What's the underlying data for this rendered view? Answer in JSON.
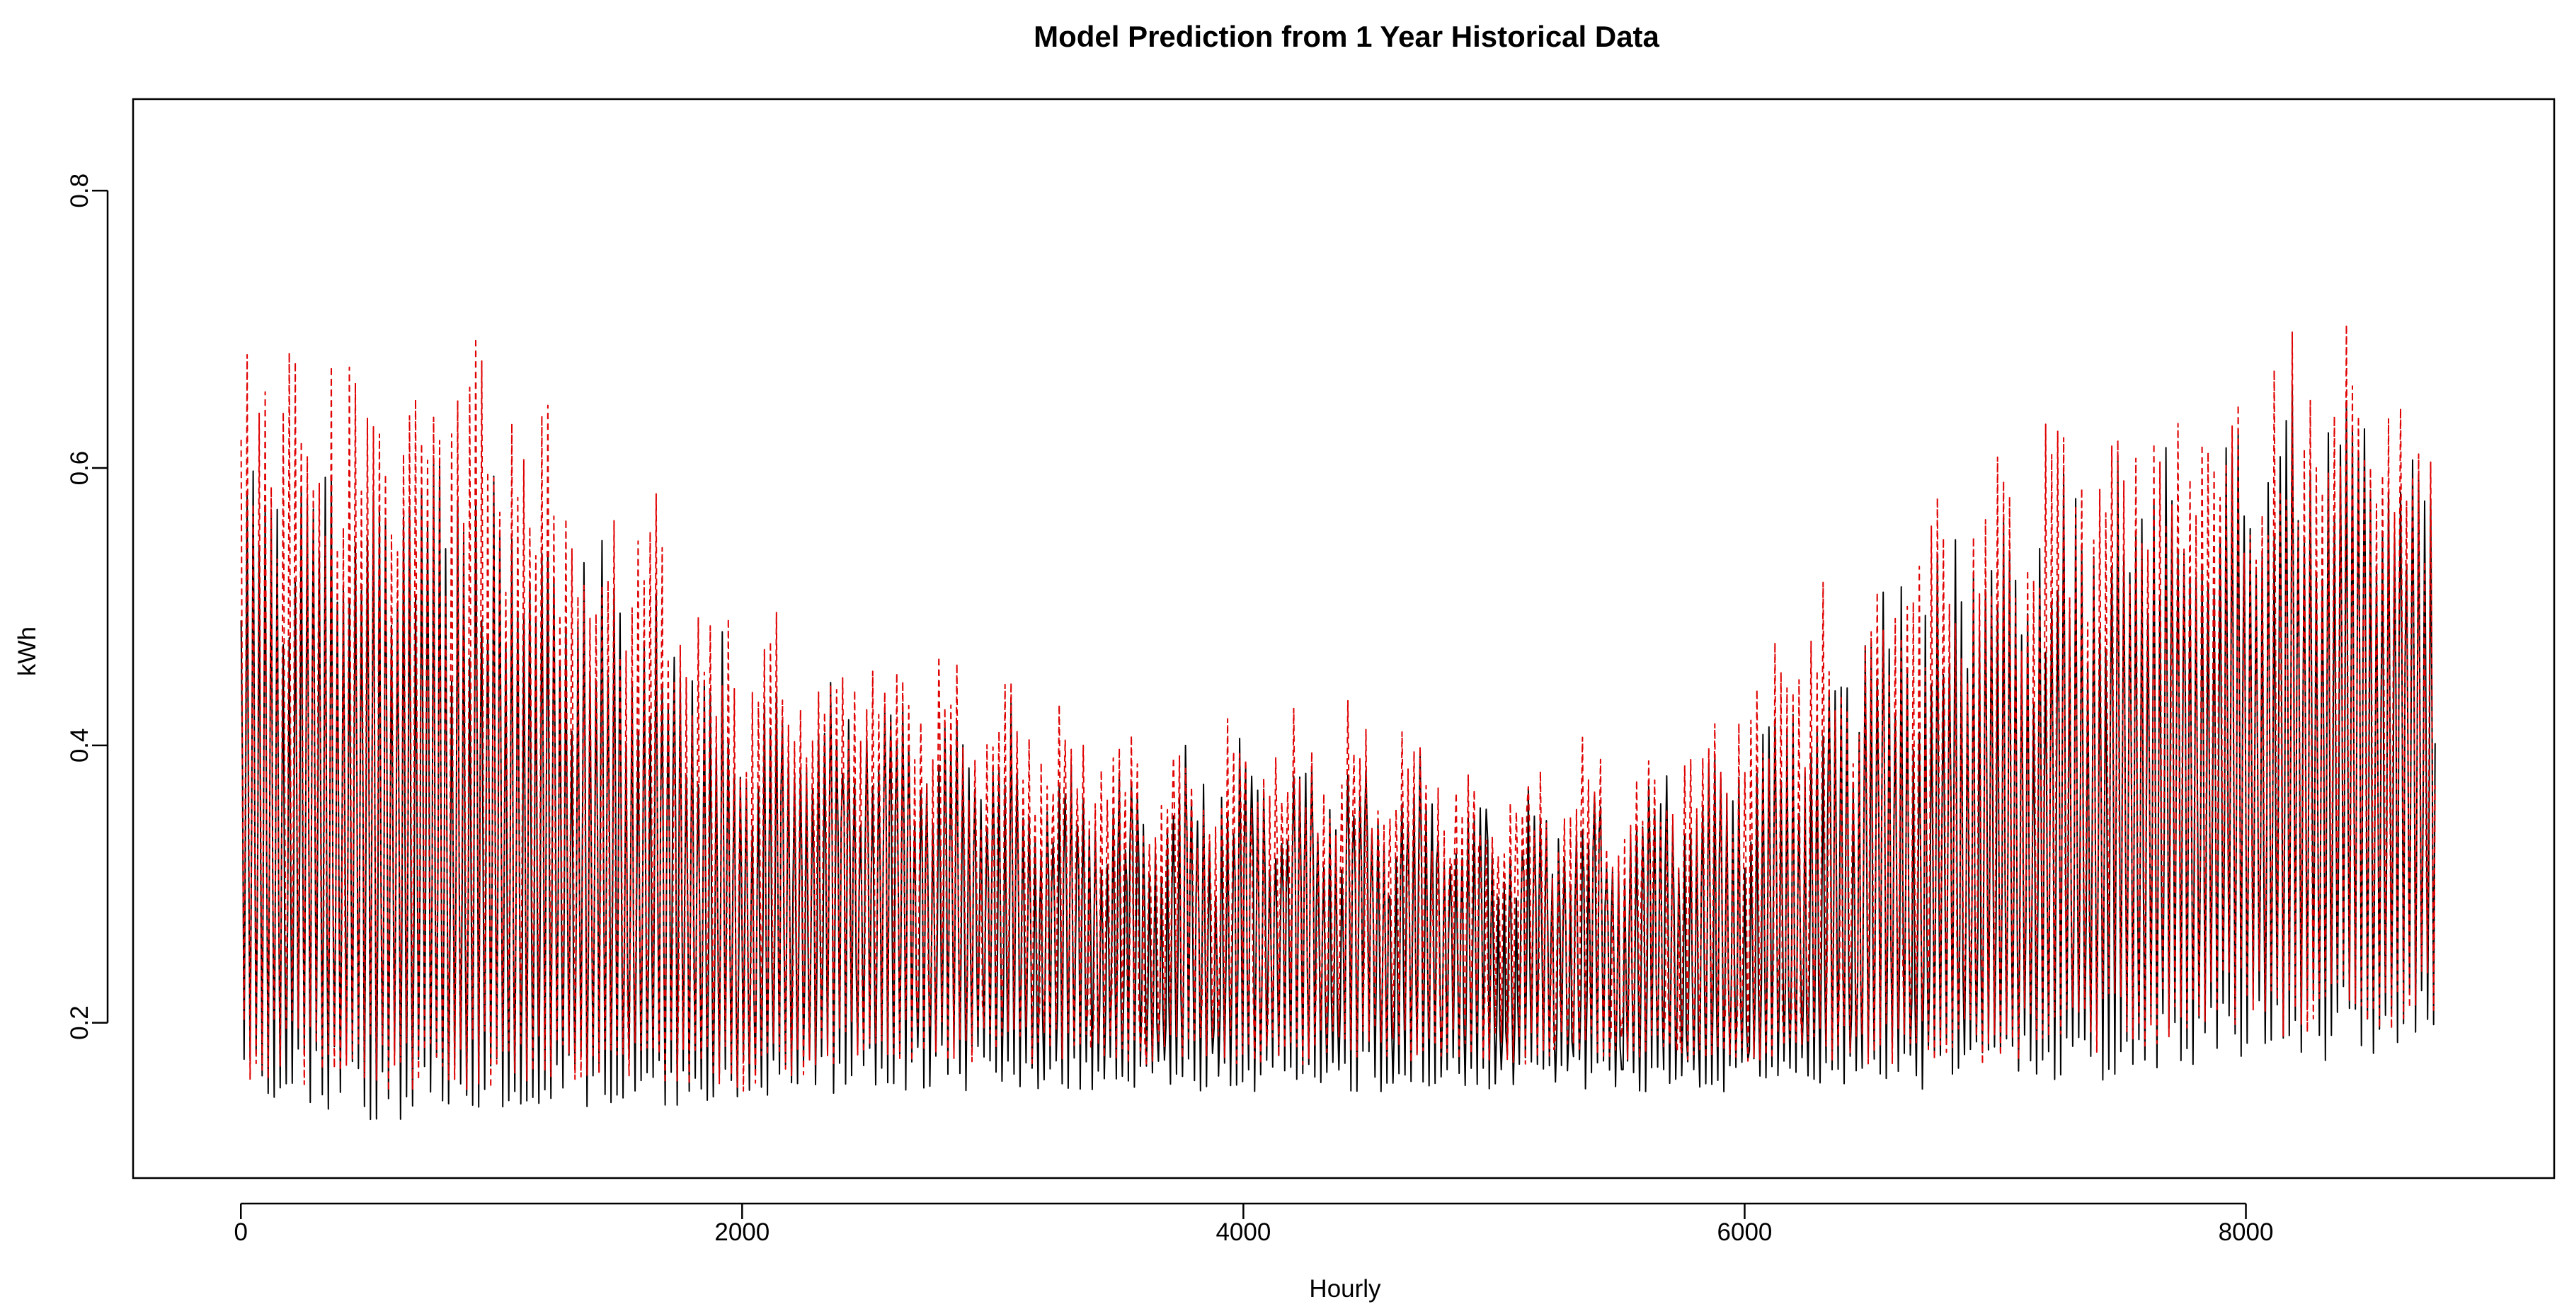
{
  "chart_data": {
    "type": "line",
    "title": "Model Prediction from 1 Year Historical Data",
    "xlabel": "Hourly",
    "ylabel": "kWh",
    "xlim": [
      -430,
      9230
    ],
    "ylim": [
      0.088,
      0.866
    ],
    "x_ticks": [
      0,
      2000,
      4000,
      6000,
      8000
    ],
    "x_tick_labels": [
      "0",
      "2000",
      "4000",
      "6000",
      "8000"
    ],
    "y_ticks": [
      0.2,
      0.4,
      0.6,
      0.8
    ],
    "y_tick_labels": [
      "0.2",
      "0.4",
      "0.6",
      "0.8"
    ],
    "grid": false,
    "legend": "none",
    "x_range": [
      1,
      8760
    ],
    "colors": {
      "actual": "#000000",
      "predicted": "#e00000"
    },
    "series": [
      {
        "line_style": "solid",
        "color": "#000000",
        "x": [
          0,
          500,
          1000,
          1500,
          2000,
          2500,
          3000,
          3500,
          4000,
          4500,
          5000,
          5500,
          6000,
          6500,
          7000,
          7500,
          8000,
          8500,
          8760
        ],
        "mid": [
          0.33,
          0.34,
          0.32,
          0.3,
          0.27,
          0.3,
          0.28,
          0.25,
          0.27,
          0.27,
          0.26,
          0.25,
          0.25,
          0.28,
          0.31,
          0.35,
          0.38,
          0.4,
          0.4
        ],
        "upper": [
          0.6,
          0.62,
          0.58,
          0.52,
          0.44,
          0.42,
          0.4,
          0.36,
          0.38,
          0.37,
          0.34,
          0.35,
          0.4,
          0.5,
          0.56,
          0.6,
          0.63,
          0.64,
          0.6
        ],
        "lower": [
          0.14,
          0.13,
          0.13,
          0.14,
          0.14,
          0.15,
          0.15,
          0.15,
          0.15,
          0.15,
          0.15,
          0.15,
          0.15,
          0.15,
          0.15,
          0.16,
          0.17,
          0.17,
          0.17
        ]
      },
      {
        "line_style": "dashed",
        "color": "#e00000",
        "x": [
          0,
          500,
          1000,
          1500,
          2000,
          2500,
          3000,
          3500,
          4000,
          4500,
          5000,
          5500,
          6000,
          6500,
          7000,
          7500,
          8000,
          8500,
          8760
        ],
        "mid": [
          0.34,
          0.35,
          0.33,
          0.31,
          0.28,
          0.31,
          0.29,
          0.26,
          0.28,
          0.28,
          0.27,
          0.26,
          0.26,
          0.29,
          0.32,
          0.36,
          0.39,
          0.41,
          0.41
        ],
        "upper": [
          0.72,
          0.7,
          0.66,
          0.58,
          0.48,
          0.46,
          0.43,
          0.39,
          0.41,
          0.4,
          0.37,
          0.38,
          0.44,
          0.54,
          0.6,
          0.63,
          0.66,
          0.67,
          0.62
        ],
        "lower": [
          0.16,
          0.15,
          0.15,
          0.16,
          0.15,
          0.17,
          0.17,
          0.17,
          0.17,
          0.17,
          0.17,
          0.17,
          0.17,
          0.17,
          0.17,
          0.18,
          0.19,
          0.19,
          0.19
        ]
      }
    ]
  }
}
